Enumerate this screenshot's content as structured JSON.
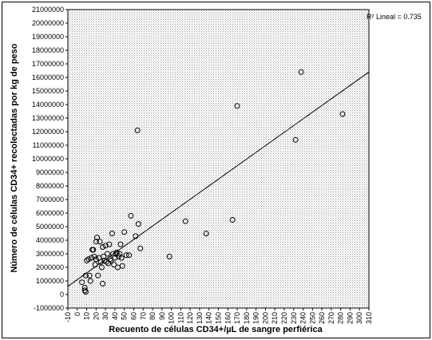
{
  "chart_data": {
    "type": "scatter",
    "xlabel": "Recuento de células CD34+/µL de sangre perfiérica",
    "ylabel": "Número de células CD34+ recolectadas por kg de peso",
    "xlim": [
      -10,
      310
    ],
    "ylim": [
      -1000000,
      21000000
    ],
    "x_ticks": [
      -10,
      0,
      10,
      20,
      30,
      40,
      50,
      60,
      70,
      80,
      90,
      100,
      110,
      120,
      130,
      140,
      150,
      160,
      170,
      180,
      190,
      200,
      210,
      220,
      230,
      240,
      250,
      260,
      270,
      280,
      290,
      300,
      310
    ],
    "y_ticks": [
      -1000000,
      0,
      1000000,
      2000000,
      3000000,
      4000000,
      5000000,
      6000000,
      7000000,
      8000000,
      9000000,
      10000000,
      11000000,
      12000000,
      13000000,
      14000000,
      15000000,
      16000000,
      17000000,
      18000000,
      19000000,
      20000000,
      21000000
    ],
    "points": [
      {
        "x": 5,
        "y": 900000
      },
      {
        "x": 8,
        "y": 500000
      },
      {
        "x": 8,
        "y": 300000
      },
      {
        "x": 9,
        "y": 200000
      },
      {
        "x": 9,
        "y": 1400000
      },
      {
        "x": 10,
        "y": 2500000
      },
      {
        "x": 12,
        "y": 2600000
      },
      {
        "x": 13,
        "y": 1400000
      },
      {
        "x": 14,
        "y": 1000000
      },
      {
        "x": 15,
        "y": 2700000
      },
      {
        "x": 16,
        "y": 3300000
      },
      {
        "x": 17,
        "y": 3300000
      },
      {
        "x": 18,
        "y": 2800000
      },
      {
        "x": 19,
        "y": 2200000
      },
      {
        "x": 20,
        "y": 2600000
      },
      {
        "x": 20,
        "y": 3900000
      },
      {
        "x": 21,
        "y": 4200000
      },
      {
        "x": 22,
        "y": 1400000
      },
      {
        "x": 23,
        "y": 2700000
      },
      {
        "x": 24,
        "y": 3900000
      },
      {
        "x": 25,
        "y": 2400000
      },
      {
        "x": 26,
        "y": 2000000
      },
      {
        "x": 27,
        "y": 3500000
      },
      {
        "x": 27,
        "y": 800000
      },
      {
        "x": 28,
        "y": 2800000
      },
      {
        "x": 29,
        "y": 2500000
      },
      {
        "x": 30,
        "y": 3600000
      },
      {
        "x": 31,
        "y": 2400000
      },
      {
        "x": 32,
        "y": 3000000
      },
      {
        "x": 33,
        "y": 2300000
      },
      {
        "x": 34,
        "y": 3700000
      },
      {
        "x": 35,
        "y": 2600000
      },
      {
        "x": 36,
        "y": 2500000
      },
      {
        "x": 37,
        "y": 4500000
      },
      {
        "x": 38,
        "y": 3000000
      },
      {
        "x": 39,
        "y": 2200000
      },
      {
        "x": 40,
        "y": 2700000
      },
      {
        "x": 41,
        "y": 3000000
      },
      {
        "x": 42,
        "y": 3100000
      },
      {
        "x": 43,
        "y": 2000000
      },
      {
        "x": 44,
        "y": 2800000
      },
      {
        "x": 45,
        "y": 3000000
      },
      {
        "x": 46,
        "y": 3700000
      },
      {
        "x": 47,
        "y": 2700000
      },
      {
        "x": 48,
        "y": 2100000
      },
      {
        "x": 50,
        "y": 4600000
      },
      {
        "x": 52,
        "y": 2900000
      },
      {
        "x": 55,
        "y": 2900000
      },
      {
        "x": 57,
        "y": 5800000
      },
      {
        "x": 62,
        "y": 4300000
      },
      {
        "x": 64,
        "y": 12100000
      },
      {
        "x": 65,
        "y": 5200000
      },
      {
        "x": 67,
        "y": 3400000
      },
      {
        "x": 98,
        "y": 2800000
      },
      {
        "x": 115,
        "y": 5400000
      },
      {
        "x": 137,
        "y": 4500000
      },
      {
        "x": 165,
        "y": 5500000
      },
      {
        "x": 170,
        "y": 13900000
      },
      {
        "x": 232,
        "y": 11400000
      },
      {
        "x": 238,
        "y": 16400000
      },
      {
        "x": 282,
        "y": 13300000
      }
    ],
    "fit_line": {
      "x": [
        -10,
        310
      ],
      "y": [
        600000,
        16400000
      ]
    },
    "r2_label": "R² Lineal = 0.735",
    "grid": false,
    "background_pattern": "stippled"
  }
}
